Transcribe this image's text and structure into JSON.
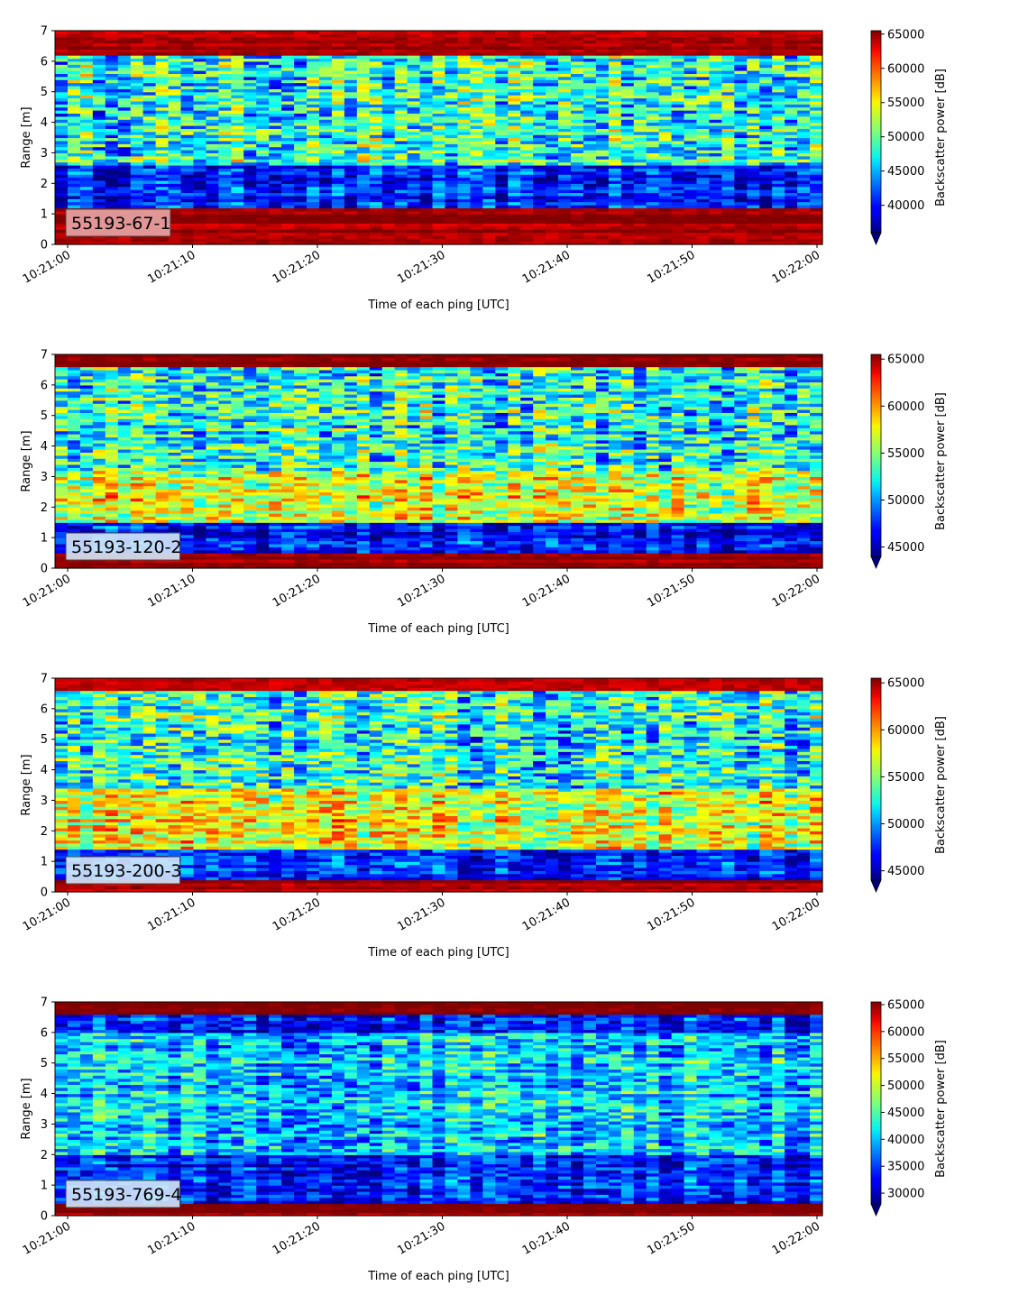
{
  "chart_data": [
    {
      "type": "heatmap",
      "panel_label": "55193-67-1",
      "label_box_color": "#e8a6a6",
      "xlabel": "Time of each ping [UTC]",
      "ylabel": "Range [m]",
      "x_ticks": [
        "10:21:00",
        "10:21:10",
        "10:21:20",
        "10:21:30",
        "10:21:40",
        "10:21:50",
        "10:22:00"
      ],
      "y_ticks": [
        "0",
        "1",
        "2",
        "3",
        "4",
        "5",
        "6",
        "7"
      ],
      "xlim": [
        "10:21:00",
        "10:22:00"
      ],
      "ylim": [
        0,
        7
      ],
      "colormap": "jet",
      "colorbar_label": "Backscatter power [dB]",
      "colorbar_ticks": [
        "40000",
        "45000",
        "50000",
        "55000",
        "60000",
        "65000"
      ],
      "colorbar_range": [
        36000,
        65500
      ],
      "colorbar_extend": "min",
      "range_profile": [
        {
          "range_m": [
            0.0,
            0.3
          ],
          "level": "high"
        },
        {
          "range_m": [
            0.3,
            1.2
          ],
          "level": "high"
        },
        {
          "range_m": [
            1.2,
            2.6
          ],
          "level": "low"
        },
        {
          "range_m": [
            2.6,
            6.2
          ],
          "level": "medium"
        },
        {
          "range_m": [
            6.2,
            7.0
          ],
          "level": "high"
        }
      ]
    },
    {
      "type": "heatmap",
      "panel_label": "55193-120-2",
      "label_box_color": "#d4e8f8",
      "xlabel": "Time of each ping [UTC]",
      "ylabel": "Range [m]",
      "x_ticks": [
        "10:21:00",
        "10:21:10",
        "10:21:20",
        "10:21:30",
        "10:21:40",
        "10:21:50",
        "10:22:00"
      ],
      "y_ticks": [
        "0",
        "1",
        "2",
        "3",
        "4",
        "5",
        "6",
        "7"
      ],
      "xlim": [
        "10:21:00",
        "10:22:00"
      ],
      "ylim": [
        0,
        7
      ],
      "colormap": "jet",
      "colorbar_label": "Backscatter power [dB]",
      "colorbar_ticks": [
        "45000",
        "50000",
        "55000",
        "60000",
        "65000"
      ],
      "colorbar_range": [
        44000,
        65500
      ],
      "colorbar_extend": "min",
      "range_profile": [
        {
          "range_m": [
            0.0,
            0.5
          ],
          "level": "high"
        },
        {
          "range_m": [
            0.5,
            1.5
          ],
          "level": "low"
        },
        {
          "range_m": [
            1.5,
            3.2
          ],
          "level": "medium-high"
        },
        {
          "range_m": [
            3.2,
            6.6
          ],
          "level": "medium"
        },
        {
          "range_m": [
            6.6,
            7.0
          ],
          "level": "high"
        }
      ]
    },
    {
      "type": "heatmap",
      "panel_label": "55193-200-3",
      "label_box_color": "#d4e8f8",
      "xlabel": "Time of each ping [UTC]",
      "ylabel": "Range [m]",
      "x_ticks": [
        "10:21:00",
        "10:21:10",
        "10:21:20",
        "10:21:30",
        "10:21:40",
        "10:21:50",
        "10:22:00"
      ],
      "y_ticks": [
        "0",
        "1",
        "2",
        "3",
        "4",
        "5",
        "6",
        "7"
      ],
      "xlim": [
        "10:21:00",
        "10:22:00"
      ],
      "ylim": [
        0,
        7
      ],
      "colormap": "jet",
      "colorbar_label": "Backscatter power [dB]",
      "colorbar_ticks": [
        "45000",
        "50000",
        "55000",
        "60000",
        "65000"
      ],
      "colorbar_range": [
        44000,
        65500
      ],
      "colorbar_extend": "min",
      "range_profile": [
        {
          "range_m": [
            0.0,
            0.4
          ],
          "level": "high"
        },
        {
          "range_m": [
            0.4,
            1.4
          ],
          "level": "low"
        },
        {
          "range_m": [
            1.4,
            3.4
          ],
          "level": "medium-high"
        },
        {
          "range_m": [
            3.4,
            6.6
          ],
          "level": "medium"
        },
        {
          "range_m": [
            6.6,
            7.0
          ],
          "level": "high"
        }
      ]
    },
    {
      "type": "heatmap",
      "panel_label": "55193-769-4",
      "label_box_color": "#d4e8f8",
      "xlabel": "Time of each ping [UTC]",
      "ylabel": "Range [m]",
      "x_ticks": [
        "10:21:00",
        "10:21:10",
        "10:21:20",
        "10:21:30",
        "10:21:40",
        "10:21:50",
        "10:22:00"
      ],
      "y_ticks": [
        "0",
        "1",
        "2",
        "3",
        "4",
        "5",
        "6",
        "7"
      ],
      "xlim": [
        "10:21:00",
        "10:22:00"
      ],
      "ylim": [
        0,
        7
      ],
      "colormap": "jet",
      "colorbar_label": "Backscatter power [dB]",
      "colorbar_ticks": [
        "30000",
        "35000",
        "40000",
        "45000",
        "50000",
        "55000",
        "60000",
        "65000"
      ],
      "colorbar_range": [
        28000,
        65500
      ],
      "colorbar_extend": "min",
      "range_profile": [
        {
          "range_m": [
            0.0,
            0.4
          ],
          "level": "high"
        },
        {
          "range_m": [
            0.4,
            2.0
          ],
          "level": "low"
        },
        {
          "range_m": [
            2.0,
            6.0
          ],
          "level": "medium-low"
        },
        {
          "range_m": [
            6.0,
            6.6
          ],
          "level": "low"
        },
        {
          "range_m": [
            6.6,
            7.0
          ],
          "level": "high"
        }
      ]
    }
  ]
}
